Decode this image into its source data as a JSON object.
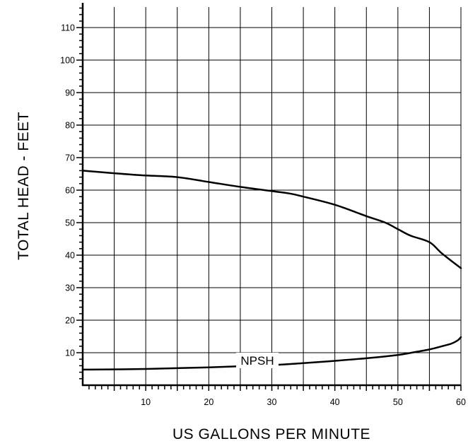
{
  "chart_data": {
    "type": "line",
    "title": "",
    "xlabel": "US GALLONS PER MINUTE",
    "ylabel": "TOTAL HEAD - FEET",
    "xlim": [
      0,
      60
    ],
    "ylim": [
      0,
      120
    ],
    "grid": true,
    "x_ticks": [
      10,
      20,
      30,
      40,
      50,
      60
    ],
    "y_ticks": [
      10,
      20,
      30,
      40,
      50,
      60,
      70,
      80,
      90,
      100,
      110
    ],
    "series": [
      {
        "label": "",
        "x": [
          0,
          5,
          10,
          15,
          20,
          25,
          30,
          33,
          35,
          40,
          45,
          48,
          50,
          52,
          55,
          57,
          60
        ],
        "values": [
          66,
          65.2,
          64.5,
          64,
          62.5,
          61,
          59.7,
          58.9,
          58,
          55.5,
          52,
          50,
          48,
          46,
          44,
          40.5,
          36
        ]
      },
      {
        "name": "NPSH",
        "label": "NPSH",
        "x": [
          0,
          10,
          20,
          30,
          35,
          40,
          45,
          50,
          53,
          55,
          57,
          58.5,
          59.5,
          60
        ],
        "values": [
          4.8,
          5,
          5.5,
          6.2,
          6.8,
          7.5,
          8.3,
          9.3,
          10.3,
          11,
          12,
          12.8,
          13.8,
          14.8
        ]
      }
    ]
  }
}
